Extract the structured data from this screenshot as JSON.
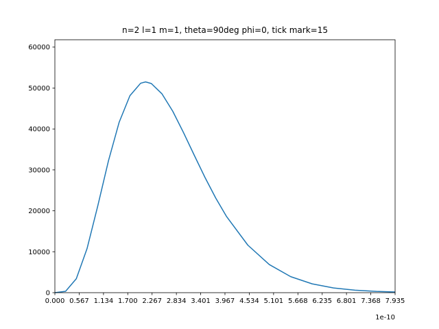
{
  "chart_data": {
    "type": "line",
    "title": "n=2 l=1 m=1, theta=90deg phi=0, tick mark=15",
    "x_offset_label": "1e-10",
    "x": [
      0,
      0.25,
      0.5,
      0.75,
      1.0,
      1.25,
      1.5,
      1.75,
      2.0,
      2.116,
      2.25,
      2.5,
      2.75,
      3.0,
      3.25,
      3.5,
      3.75,
      4.0,
      4.5,
      5.0,
      5.5,
      6.0,
      6.5,
      7.0,
      7.5,
      7.935
    ],
    "series": [
      {
        "color": "#1f77b4",
        "values": [
          0,
          341,
          3408,
          10753,
          21180,
          32234,
          41664,
          48132,
          51176,
          51500,
          51105,
          48554,
          44321,
          39124,
          33600,
          28179,
          23154,
          18672,
          11620,
          6882,
          3916,
          2154,
          1153,
          603,
          309,
          170
        ]
      }
    ],
    "xlim": [
      0,
      7.935
    ],
    "xticks": [
      {
        "value": 0,
        "label": "0.000"
      },
      0.567,
      1.134,
      {
        "value": 1.7,
        "label": "1.700"
      },
      2.267,
      2.834,
      3.401,
      3.967,
      4.534,
      5.101,
      5.668,
      6.235,
      6.801,
      7.368,
      7.935
    ],
    "ylim": [
      0,
      61800
    ],
    "yticks": [
      0,
      10000,
      20000,
      30000,
      40000,
      50000,
      60000
    ],
    "grid": false
  }
}
